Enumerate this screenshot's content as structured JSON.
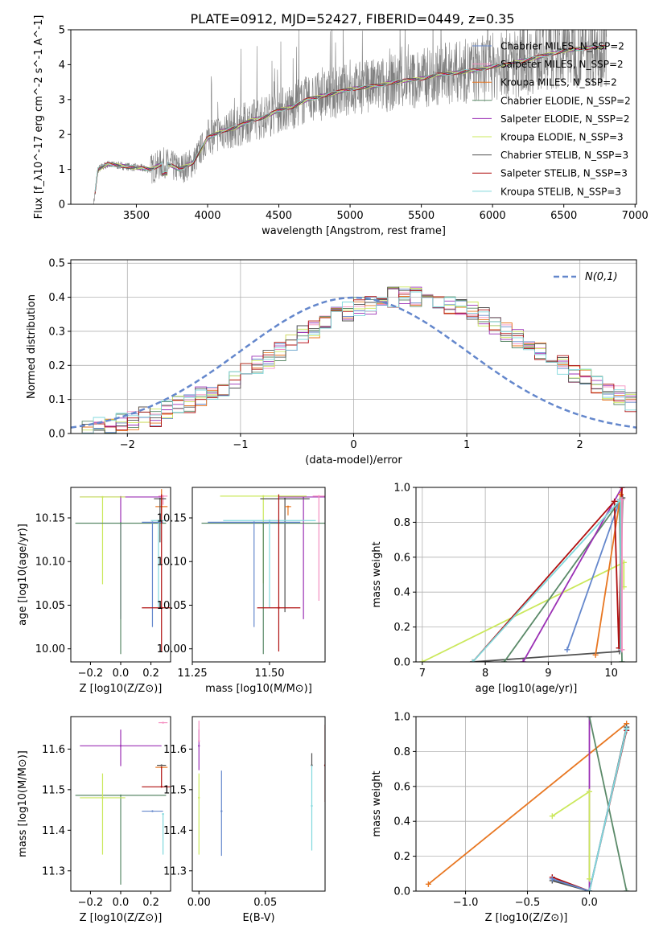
{
  "figure": {
    "title": "PLATE=0912, MJD=52427, FIBERID=0449, z=0.35"
  },
  "chart_data": [
    {
      "id": "spectrum",
      "type": "line",
      "title": "PLATE=0912, MJD=52427, FIBERID=0449, z=0.35",
      "xlabel": "wavelength [Angstrom, rest frame]",
      "ylabel": "Flux [f_λ10^-17 erg cm^-2 s^-1 A^-1]",
      "xlim": [
        3040,
        7010
      ],
      "ylim": [
        0,
        5
      ],
      "xticks": [
        3500,
        4000,
        4500,
        5000,
        5500,
        6000,
        6500,
        7000
      ],
      "yticks": [
        0,
        1,
        2,
        3,
        4,
        5
      ],
      "legend_position": "top-right",
      "data_series": {
        "name": "data",
        "color": "#808080",
        "x_range": [
          3200,
          6800
        ],
        "envelope_points": [
          [
            3200,
            0.0
          ],
          [
            3230,
            1.0
          ],
          [
            3300,
            1.15
          ],
          [
            3400,
            1.1
          ],
          [
            3500,
            1.05
          ],
          [
            3600,
            1.0
          ],
          [
            3700,
            1.2
          ],
          [
            3800,
            1.0
          ],
          [
            3900,
            1.2
          ],
          [
            4000,
            1.9
          ],
          [
            4100,
            2.1
          ],
          [
            4200,
            2.2
          ],
          [
            4300,
            2.4
          ],
          [
            4400,
            2.5
          ],
          [
            4500,
            2.7
          ],
          [
            4600,
            2.8
          ],
          [
            4700,
            3.0
          ],
          [
            4800,
            3.1
          ],
          [
            4900,
            3.2
          ],
          [
            5000,
            3.3
          ],
          [
            5100,
            3.35
          ],
          [
            5200,
            3.4
          ],
          [
            5300,
            3.5
          ],
          [
            5400,
            3.55
          ],
          [
            5500,
            3.6
          ],
          [
            5600,
            3.7
          ],
          [
            5700,
            3.75
          ],
          [
            5800,
            3.8
          ],
          [
            5900,
            3.85
          ],
          [
            6000,
            3.95
          ],
          [
            6100,
            4.0
          ],
          [
            6200,
            4.1
          ],
          [
            6300,
            4.2
          ],
          [
            6400,
            4.3
          ],
          [
            6500,
            4.4
          ],
          [
            6600,
            4.45
          ],
          [
            6700,
            4.5
          ],
          [
            6800,
            4.5
          ]
        ]
      },
      "series": [
        {
          "name": "Chabrier MILES, N_SSP=2",
          "color": "#6487cc"
        },
        {
          "name": "Salpeter MILES, N_SSP=2",
          "color": "#f48fc0"
        },
        {
          "name": "Kroupa MILES, N_SSP=2",
          "color": "#e87722"
        },
        {
          "name": "Chabrier ELODIE, N_SSP=2",
          "color": "#5b8a69"
        },
        {
          "name": "Salpeter ELODIE, N_SSP=2",
          "color": "#9b30b5"
        },
        {
          "name": "Kroupa ELODIE, N_SSP=3",
          "color": "#cbe85c"
        },
        {
          "name": "Chabrier STELIB, N_SSP=3",
          "color": "#505050"
        },
        {
          "name": "Salpeter STELIB, N_SSP=3",
          "color": "#b01010"
        },
        {
          "name": "Kroupa STELIB, N_SSP=3",
          "color": "#80d8dc"
        }
      ]
    },
    {
      "id": "residual-distribution",
      "type": "histogram",
      "xlabel": "(data-model)/error",
      "ylabel": "Normed distribution",
      "xlim": [
        -2.5,
        2.5
      ],
      "ylim": [
        0,
        0.51
      ],
      "xticks": [
        -2,
        -1,
        0,
        1,
        2
      ],
      "yticks": [
        0.0,
        0.1,
        0.2,
        0.3,
        0.4,
        0.5
      ],
      "grid": true,
      "legend_position": "top-right",
      "reference_curve": {
        "name": "N(0,1)",
        "color": "#6487cc",
        "style": "dashed"
      },
      "bin_width": 0.1,
      "base_values": [
        0.01,
        0.01,
        0.02,
        0.02,
        0.03,
        0.04,
        0.05,
        0.05,
        0.07,
        0.08,
        0.09,
        0.11,
        0.12,
        0.14,
        0.16,
        0.18,
        0.2,
        0.22,
        0.24,
        0.27,
        0.29,
        0.31,
        0.33,
        0.35,
        0.36,
        0.37,
        0.38,
        0.39,
        0.4,
        0.41,
        0.4,
        0.4,
        0.39,
        0.38,
        0.37,
        0.36,
        0.34,
        0.32,
        0.3,
        0.28,
        0.26,
        0.24,
        0.22,
        0.2,
        0.18,
        0.16,
        0.14,
        0.12,
        0.11,
        0.09,
        0.08,
        0.07,
        0.06,
        0.05,
        0.04,
        0.04,
        0.03,
        0.03,
        0.02,
        0.02
      ]
    },
    {
      "id": "age-vs-metallicity",
      "type": "scatter",
      "xlabel": "Z [log10(Z/Z⊙)]",
      "ylabel": "age [log10(age/yr)]",
      "xlim": [
        -0.33,
        0.33
      ],
      "ylim": [
        9.985,
        10.185
      ],
      "xticks": [
        -0.2,
        0.0,
        0.2
      ],
      "yticks": [
        10.0,
        10.05,
        10.1,
        10.15
      ],
      "error_bars": [
        {
          "color": "#f48fc0",
          "x": 0.28,
          "xerr": 0.03,
          "y": 10.175,
          "yerr": [
            0.01,
            0.0
          ]
        },
        {
          "color": "#e87722",
          "x": 0.27,
          "xerr": 0.04,
          "y": 10.163,
          "yerr": [
            0.01,
            0.02
          ]
        },
        {
          "color": "#505050",
          "x": 0.26,
          "xerr": 0.04,
          "y": 10.172,
          "yerr": [
            0.05,
            0.0
          ]
        },
        {
          "color": "#9b30b5",
          "x": 0.0,
          "xerr": 0.27,
          "y": 10.174,
          "yerr": [
            0.14,
            0.0
          ]
        },
        {
          "color": "#cbe85c",
          "x": -0.12,
          "xerr": 0.15,
          "y": 10.174,
          "yerr": [
            0.1,
            0.0
          ]
        },
        {
          "color": "#5b8a69",
          "x": 0.0,
          "xerr": 0.3,
          "y": 10.144,
          "yerr": [
            0.15,
            0.0
          ]
        },
        {
          "color": "#80d8dc",
          "x": 0.25,
          "xerr": 0.05,
          "y": 10.147,
          "yerr": [
            0.1,
            0.0
          ]
        },
        {
          "color": "#6487cc",
          "x": 0.21,
          "xerr": 0.07,
          "y": 10.145,
          "yerr": [
            0.12,
            0.0
          ]
        },
        {
          "color": "#b01010",
          "x": 0.27,
          "xerr": 0.13,
          "y": 10.047,
          "yerr": [
            0.05,
            0.13
          ]
        }
      ]
    },
    {
      "id": "age-vs-mass",
      "type": "scatter",
      "xlabel": "mass [log10(M/M⊙)]",
      "ylabel": "",
      "xlim": [
        11.25,
        11.68
      ],
      "ylim": [
        9.985,
        10.185
      ],
      "xticks": [
        11.25,
        11.5
      ],
      "yticks": [
        10.0,
        10.05,
        10.1,
        10.15
      ],
      "error_bars": [
        {
          "color": "#9b30b5",
          "x": 11.61,
          "xerr": 0.08,
          "y": 10.174,
          "yerr": [
            0.14,
            0.0
          ]
        },
        {
          "color": "#cbe85c",
          "x": 11.48,
          "xerr": 0.14,
          "y": 10.175,
          "yerr": [
            0.1,
            0.0
          ]
        },
        {
          "color": "#505050",
          "x": 11.55,
          "xerr": 0.08,
          "y": 10.172,
          "yerr": [
            0.13,
            0.0
          ]
        },
        {
          "color": "#f48fc0",
          "x": 11.66,
          "xerr": 0.02,
          "y": 10.175,
          "yerr": [
            0.12,
            0.0
          ]
        },
        {
          "color": "#5b8a69",
          "x": 11.48,
          "xerr": 0.2,
          "y": 10.144,
          "yerr": [
            0.15,
            0.0
          ]
        },
        {
          "color": "#80d8dc",
          "x": 11.5,
          "xerr": 0.15,
          "y": 10.147,
          "yerr": [
            0.1,
            0.0
          ]
        },
        {
          "color": "#6487cc",
          "x": 11.45,
          "xerr": 0.15,
          "y": 10.145,
          "yerr": [
            0.12,
            0.0
          ]
        },
        {
          "color": "#e87722",
          "x": 11.56,
          "xerr": 0.01,
          "y": 10.163,
          "yerr": [
            0.01,
            0.0
          ]
        },
        {
          "color": "#b01010",
          "x": 11.53,
          "xerr": 0.07,
          "y": 10.047,
          "yerr": [
            0.05,
            0.13
          ]
        }
      ]
    },
    {
      "id": "weight-vs-age",
      "type": "line",
      "xlabel": "age [log10(age/yr)]",
      "ylabel": "mass weight",
      "xlim": [
        6.9,
        10.4
      ],
      "ylim": [
        0,
        1
      ],
      "xticks": [
        7,
        8,
        9,
        10
      ],
      "yticks": [
        0.0,
        0.2,
        0.4,
        0.6,
        0.8,
        1.0
      ],
      "grid": true,
      "series": [
        {
          "color": "#cbe85c",
          "points": [
            [
              7.0,
              0.0
            ],
            [
              10.2,
              0.57
            ],
            [
              10.2,
              0.43
            ]
          ]
        },
        {
          "color": "#505050",
          "points": [
            [
              7.8,
              0.0
            ],
            [
              10.13,
              0.06
            ],
            [
              10.18,
              0.94
            ]
          ]
        },
        {
          "color": "#5b8a69",
          "points": [
            [
              8.3,
              0.0
            ],
            [
              10.13,
              0.92
            ],
            [
              10.17,
              0.0
            ]
          ]
        },
        {
          "color": "#9b30b5",
          "points": [
            [
              8.6,
              0.0
            ],
            [
              10.17,
              1.0
            ]
          ]
        },
        {
          "color": "#6487cc",
          "points": [
            [
              9.3,
              0.07
            ],
            [
              10.14,
              0.93
            ]
          ]
        },
        {
          "color": "#e87722",
          "points": [
            [
              9.75,
              0.04
            ],
            [
              10.15,
              0.96
            ]
          ]
        },
        {
          "color": "#b01010",
          "points": [
            [
              7.8,
              0.0
            ],
            [
              10.05,
              0.92
            ],
            [
              10.12,
              0.08
            ],
            [
              10.17,
              1.0
            ]
          ]
        },
        {
          "color": "#80d8dc",
          "points": [
            [
              7.8,
              0.0
            ],
            [
              10.15,
              0.93
            ],
            [
              10.15,
              0.07
            ]
          ]
        },
        {
          "color": "#f48fc0",
          "points": [
            [
              10.17,
              0.93
            ],
            [
              10.17,
              0.07
            ]
          ]
        }
      ]
    },
    {
      "id": "mass-vs-metallicity",
      "type": "scatter",
      "xlabel": "Z [log10(Z/Z⊙)]",
      "ylabel": "mass [log10(M/M⊙)]",
      "xlim": [
        -0.33,
        0.33
      ],
      "ylim": [
        11.25,
        11.68
      ],
      "xticks": [
        -0.2,
        0.0,
        0.2
      ],
      "yticks": [
        11.3,
        11.4,
        11.5,
        11.6
      ],
      "error_bars": [
        {
          "color": "#f48fc0",
          "x": 0.28,
          "xerr": 0.03,
          "y": 11.665,
          "yerr": [
            0.0,
            0.0
          ]
        },
        {
          "color": "#9b30b5",
          "x": 0.0,
          "xerr": 0.27,
          "y": 11.608,
          "yerr": [
            0.05,
            0.04
          ]
        },
        {
          "color": "#505050",
          "x": 0.27,
          "xerr": 0.03,
          "y": 11.56,
          "yerr": [
            0.0,
            0.0
          ]
        },
        {
          "color": "#e87722",
          "x": 0.27,
          "xerr": 0.04,
          "y": 11.555,
          "yerr": [
            0.0,
            0.0
          ]
        },
        {
          "color": "#b01010",
          "x": 0.27,
          "xerr": 0.13,
          "y": 11.507,
          "yerr": [
            0.0,
            0.05
          ]
        },
        {
          "color": "#5b8a69",
          "x": 0.0,
          "xerr": 0.3,
          "y": 11.486,
          "yerr": [
            0.22,
            0.0
          ]
        },
        {
          "color": "#cbe85c",
          "x": -0.12,
          "xerr": 0.15,
          "y": 11.48,
          "yerr": [
            0.14,
            0.06
          ]
        },
        {
          "color": "#6487cc",
          "x": 0.21,
          "xerr": 0.07,
          "y": 11.447,
          "yerr": [
            0.0,
            0.0
          ]
        },
        {
          "color": "#80d8dc",
          "x": 0.28,
          "xerr": 0.0,
          "y": 11.44,
          "yerr": [
            0.1,
            0.0
          ]
        }
      ]
    },
    {
      "id": "mass-vs-ebv",
      "type": "scatter",
      "xlabel": "E(B-V)",
      "ylabel": "",
      "xlim": [
        -0.005,
        0.095
      ],
      "ylim": [
        11.25,
        11.68
      ],
      "xticks": [
        0.0,
        0.05
      ],
      "yticks": [
        11.3,
        11.4,
        11.5,
        11.6
      ],
      "error_bars": [
        {
          "color": "#9b30b5",
          "x": 0.0,
          "y": 11.608,
          "yerr": [
            0.06,
            0.04
          ]
        },
        {
          "color": "#cbe85c",
          "x": 0.0,
          "y": 11.48,
          "yerr": [
            0.14,
            0.06
          ]
        },
        {
          "color": "#f48fc0",
          "x": 0.0,
          "y": 11.62,
          "yerr": [
            0.0,
            0.05
          ]
        },
        {
          "color": "#6487cc",
          "x": 0.017,
          "y": 11.447,
          "yerr": [
            0.11,
            0.1
          ]
        },
        {
          "color": "#505050",
          "x": 0.085,
          "y": 11.56,
          "yerr": [
            0.0,
            0.03
          ]
        },
        {
          "color": "#80d8dc",
          "x": 0.085,
          "y": 11.46,
          "yerr": [
            0.11,
            0.1
          ]
        },
        {
          "color": "#b01010",
          "x": 0.095,
          "y": 11.56,
          "yerr": [
            0.09,
            0.1
          ]
        }
      ]
    },
    {
      "id": "weight-vs-metallicity",
      "type": "line",
      "xlabel": "Z [log10(Z/Z⊙)]",
      "ylabel": "mass weight",
      "xlim": [
        -1.4,
        0.38
      ],
      "ylim": [
        0,
        1
      ],
      "xticks": [
        -1.0,
        -0.5,
        0.0
      ],
      "yticks": [
        0.0,
        0.2,
        0.4,
        0.6,
        0.8,
        1.0
      ],
      "grid": true,
      "series": [
        {
          "color": "#e87722",
          "points": [
            [
              -1.3,
              0.04
            ],
            [
              0.3,
              0.96
            ]
          ]
        },
        {
          "color": "#9b30b5",
          "points": [
            [
              0.0,
              1.0
            ],
            [
              0.0,
              0.0
            ]
          ]
        },
        {
          "color": "#5b8a69",
          "points": [
            [
              0.0,
              1.0
            ],
            [
              0.3,
              0.0
            ]
          ]
        },
        {
          "color": "#cbe85c",
          "points": [
            [
              -0.3,
              0.43
            ],
            [
              0.0,
              0.57
            ],
            [
              0.0,
              0.07
            ]
          ]
        },
        {
          "color": "#505050",
          "points": [
            [
              -0.3,
              0.06
            ],
            [
              0.0,
              0.0
            ],
            [
              0.3,
              0.94
            ]
          ]
        },
        {
          "color": "#b01010",
          "points": [
            [
              -0.3,
              0.08
            ],
            [
              0.0,
              0.0
            ],
            [
              0.3,
              0.92
            ]
          ]
        },
        {
          "color": "#6487cc",
          "points": [
            [
              -0.3,
              0.07
            ],
            [
              0.0,
              0.0
            ],
            [
              0.3,
              0.93
            ]
          ]
        },
        {
          "color": "#80d8dc",
          "points": [
            [
              0.0,
              0.0
            ],
            [
              0.3,
              0.93
            ]
          ]
        }
      ]
    }
  ]
}
